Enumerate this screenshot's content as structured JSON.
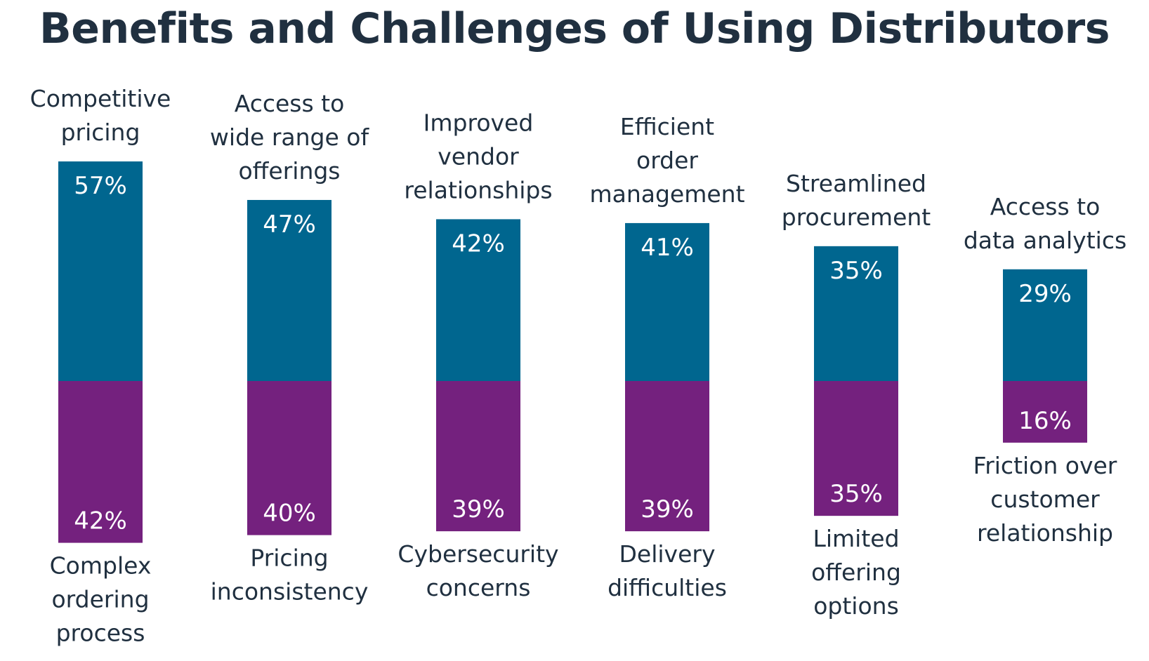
{
  "chart_data": {
    "type": "bar",
    "title": "Benefits and Challenges of Using Distributors",
    "unit": "%",
    "colors": {
      "benefits": "#00668F",
      "challenges": "#74217E",
      "title": "#203040",
      "labels": "#203040",
      "value_labels": "#FFFFFF"
    },
    "pairs": [
      {
        "benefit": [
          "Competitive",
          "pricing"
        ],
        "benefit_value": 57,
        "challenge": [
          "Complex",
          "ordering",
          "process"
        ],
        "challenge_value": 42
      },
      {
        "benefit": [
          "Access to",
          "wide range of",
          "offerings"
        ],
        "benefit_value": 47,
        "challenge": [
          "Pricing",
          "inconsistency"
        ],
        "challenge_value": 40
      },
      {
        "benefit": [
          "Improved",
          "vendor",
          "relationships"
        ],
        "benefit_value": 42,
        "challenge": [
          "Cybersecurity",
          "concerns"
        ],
        "challenge_value": 39
      },
      {
        "benefit": [
          "Efficient",
          "order",
          "management"
        ],
        "benefit_value": 41,
        "challenge": [
          "Delivery",
          "difficulties"
        ],
        "challenge_value": 39
      },
      {
        "benefit": [
          "Streamlined",
          "procurement"
        ],
        "benefit_value": 35,
        "challenge": [
          "Limited",
          "offering",
          "options"
        ],
        "challenge_value": 35
      },
      {
        "benefit": [
          "Access to",
          "data analytics"
        ],
        "benefit_value": 29,
        "challenge": [
          "Friction over",
          "customer",
          "relationship"
        ],
        "challenge_value": 16
      }
    ]
  }
}
